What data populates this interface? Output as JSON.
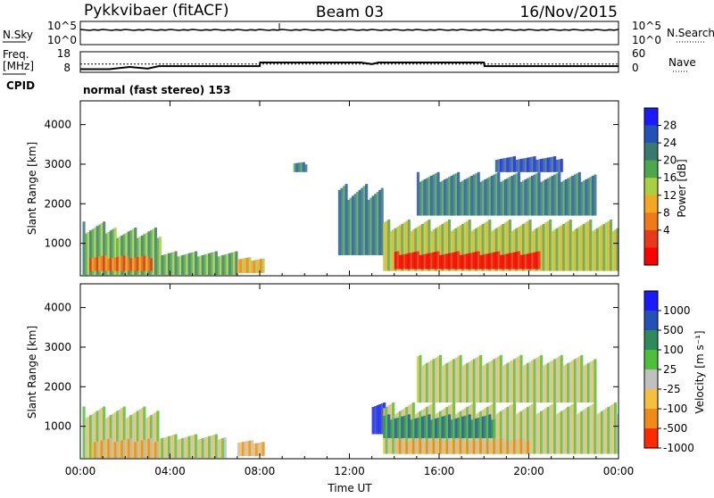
{
  "header": {
    "station": "Pykkvibaer (fitACF)",
    "beam": "Beam 03",
    "date": "16/Nov/2015"
  },
  "sky_panel": {
    "left_label": "N.Sky",
    "right_label": "N.Search",
    "left_ticks": [
      "10^5",
      "10^0"
    ],
    "right_ticks": [
      "10^5",
      "10^0"
    ]
  },
  "freq_panel": {
    "left_label_1": "Freq.",
    "left_label_2": "[MHz]",
    "right_label": "Nave",
    "left_ticks": [
      "18",
      "8"
    ],
    "right_ticks": [
      "60",
      "0"
    ],
    "freq_series": {
      "x_hours": [
        0.0,
        1.3,
        2.2,
        3.0,
        3.5,
        8.0,
        8.02,
        12.5,
        13.0,
        13.3,
        18.0,
        18.02,
        24.0
      ],
      "mhz": [
        9.5,
        9.5,
        10.6,
        9.8,
        11.0,
        11.0,
        12.8,
        12.8,
        12.0,
        12.8,
        12.8,
        11.0,
        11.0
      ]
    },
    "nave_dotted_level": 24
  },
  "cpid": {
    "label": "CPID",
    "value": "normal (fast stereo) 153"
  },
  "power_panel": {
    "ylabel": "Slant Range [km]",
    "yticks": [
      "4000",
      "3000",
      "2000",
      "1000"
    ],
    "colorbar_title": "Power [dB]",
    "colorbar_ticks": [
      "28",
      "24",
      "20",
      "16",
      "12",
      "8",
      "4"
    ],
    "colors": [
      "#1a1aff",
      "#2451b8",
      "#3a7a6e",
      "#4da84d",
      "#a8d040",
      "#f5a623",
      "#f07a1a",
      "#e83a1a",
      "#ff0000"
    ]
  },
  "velocity_panel": {
    "ylabel": "Slant Range [km]",
    "yticks": [
      "4000",
      "3000",
      "2000",
      "1000"
    ],
    "colorbar_title": "Velocity [m s⁻¹]",
    "colorbar_ticks": [
      "1000",
      "500",
      "100",
      "25",
      "-25",
      "-100",
      "-500",
      "-1000"
    ],
    "colors": [
      "#1a1aff",
      "#2451b8",
      "#2e8a5a",
      "#4dbf3a",
      "#c0c0c0",
      "#f5c040",
      "#f08a1a",
      "#ff2a00"
    ]
  },
  "x_axis": {
    "ticks": [
      "00:00",
      "04:00",
      "08:00",
      "12:00",
      "16:00",
      "20:00",
      "00:00"
    ],
    "label": "Time UT"
  },
  "chart_data": {
    "type": "heatmap",
    "title": "Pykkvibaer (fitACF) Beam 03 16/Nov/2015",
    "xlabel": "Time UT",
    "ylabel": "Slant Range [km]",
    "xlim_hours": [
      0,
      24
    ],
    "ylim_km": [
      180,
      4600
    ],
    "panels": [
      {
        "name": "Power [dB]",
        "scale": [
          0,
          32
        ],
        "regions": [
          {
            "t0": 0.1,
            "t1": 1.6,
            "r0": 200,
            "r1": 1550,
            "level": 3
          },
          {
            "t0": 1.6,
            "t1": 3.6,
            "r0": 200,
            "r1": 1400,
            "level": 3
          },
          {
            "t0": 0.4,
            "t1": 3.2,
            "r0": 300,
            "r1": 700,
            "level": 6
          },
          {
            "t0": 3.6,
            "t1": 7.0,
            "r0": 200,
            "r1": 800,
            "level": 3
          },
          {
            "t0": 7.0,
            "t1": 8.2,
            "r0": 250,
            "r1": 650,
            "level": 5
          },
          {
            "t0": 9.5,
            "t1": 10.1,
            "r0": 2800,
            "r1": 3050,
            "level": 2
          },
          {
            "t0": 11.5,
            "t1": 13.5,
            "r0": 700,
            "r1": 2500,
            "level": 2
          },
          {
            "t0": 13.5,
            "t1": 24.0,
            "r0": 300,
            "r1": 1600,
            "level": 4
          },
          {
            "t0": 14.0,
            "t1": 20.5,
            "r0": 350,
            "r1": 800,
            "level": 8
          },
          {
            "t0": 15.0,
            "t1": 23.0,
            "r0": 1700,
            "r1": 2800,
            "level": 2
          },
          {
            "t0": 18.5,
            "t1": 21.5,
            "r0": 2800,
            "r1": 3200,
            "level": 1
          }
        ]
      },
      {
        "name": "Velocity [m s-1]",
        "scale": [
          -1000,
          1000
        ],
        "regions": [
          {
            "t0": 0.1,
            "t1": 3.5,
            "r0": 200,
            "r1": 1500,
            "level": 4
          },
          {
            "t0": 0.5,
            "t1": 3.5,
            "r0": 200,
            "r1": 700,
            "level": 5
          },
          {
            "t0": 3.5,
            "t1": 6.5,
            "r0": 200,
            "r1": 800,
            "level": 4
          },
          {
            "t0": 7.0,
            "t1": 8.2,
            "r0": 250,
            "r1": 650,
            "level": 5
          },
          {
            "t0": 13.0,
            "t1": 13.6,
            "r0": 800,
            "r1": 1600,
            "level": 0
          },
          {
            "t0": 13.5,
            "t1": 24.0,
            "r0": 300,
            "r1": 1600,
            "level": 4
          },
          {
            "t0": 14.0,
            "t1": 20.0,
            "r0": 300,
            "r1": 700,
            "level": 5
          },
          {
            "t0": 13.5,
            "t1": 18.5,
            "r0": 700,
            "r1": 1300,
            "level": 2
          },
          {
            "t0": 15.0,
            "t1": 23.0,
            "r0": 1600,
            "r1": 2800,
            "level": 4
          }
        ]
      }
    ]
  }
}
